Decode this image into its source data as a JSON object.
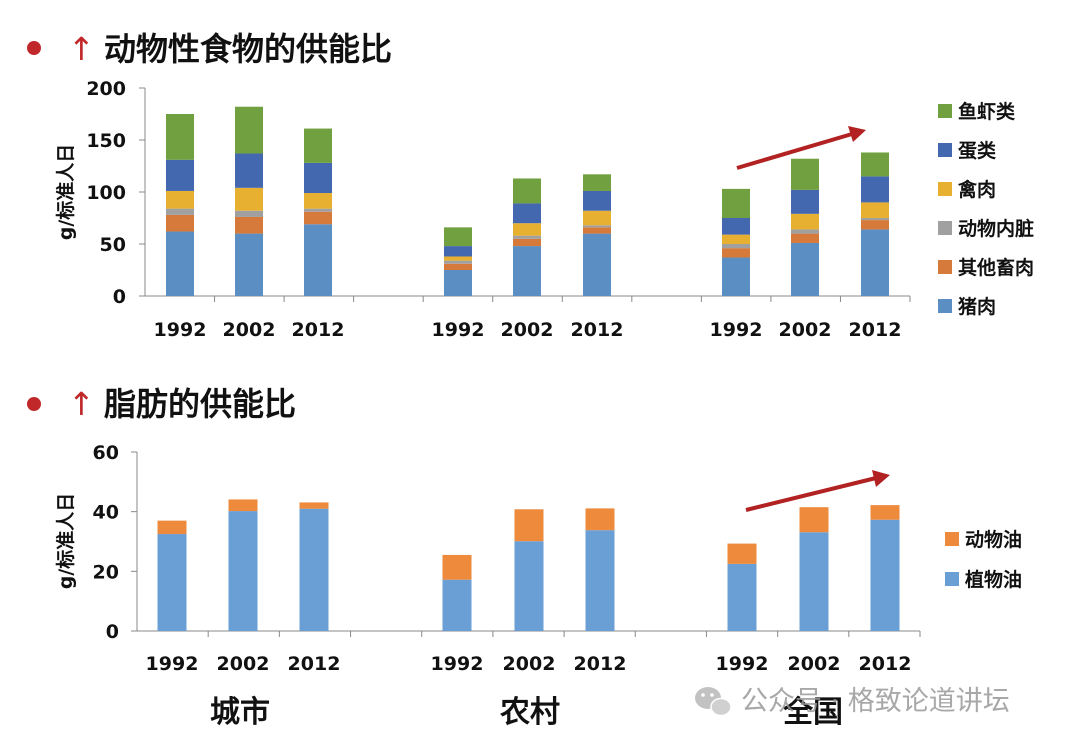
{
  "colors": {
    "fish_shrimp": "#70a040",
    "eggs": "#4468b0",
    "poultry": "#e8b030",
    "offal": "#a0a0a0",
    "other_livestock": "#d57a3a",
    "pork": "#5b8fc3",
    "animal_oil": "#ee8a3c",
    "vegetable_oil": "#6a9fd6",
    "bullet": "#c0282a",
    "arrow": "#c0282a",
    "trend_arrow": "#b22222"
  },
  "chart_data": [
    {
      "type": "bar",
      "stacked": true,
      "title": "动物性食物的供能比",
      "title_arrow": "↑",
      "ylabel": "g/标准人日",
      "ylim": [
        0,
        200
      ],
      "yticks": [
        "0",
        "50",
        "100",
        "150",
        "200"
      ],
      "groups": [
        "城市",
        "农村",
        "全国"
      ],
      "categories": [
        "1992",
        "2002",
        "2012",
        "1992",
        "2002",
        "2012",
        "1992",
        "2002",
        "2012"
      ],
      "series": [
        {
          "name": "猪肉",
          "color_key": "pork",
          "values": [
            62,
            60,
            69,
            25,
            48,
            60,
            37,
            51,
            64
          ]
        },
        {
          "name": "其他畜肉",
          "color_key": "other_livestock",
          "values": [
            16,
            16,
            12,
            6,
            7,
            6,
            9,
            9,
            9
          ]
        },
        {
          "name": "动物内脏",
          "color_key": "offal",
          "values": [
            6,
            6,
            3,
            3,
            3,
            2,
            4,
            4,
            2
          ]
        },
        {
          "name": "禽肉",
          "color_key": "poultry",
          "values": [
            17,
            22,
            15,
            4,
            12,
            14,
            9,
            15,
            15
          ]
        },
        {
          "name": "蛋类",
          "color_key": "eggs",
          "values": [
            30,
            33,
            29,
            10,
            19,
            19,
            16,
            23,
            25
          ]
        },
        {
          "name": "鱼虾类",
          "color_key": "fish_shrimp",
          "values": [
            44,
            45,
            33,
            18,
            24,
            16,
            28,
            30,
            23
          ]
        }
      ],
      "legend_order": [
        "鱼虾类",
        "蛋类",
        "禽肉",
        "动物内脏",
        "其他畜肉",
        "猪肉"
      ],
      "legend_position": "right",
      "grid": false
    },
    {
      "type": "bar",
      "stacked": true,
      "title": "脂肪的供能比",
      "title_arrow": "↑",
      "ylabel": "g/标准人日",
      "ylim": [
        0,
        60
      ],
      "yticks": [
        "0",
        "20",
        "40",
        "60"
      ],
      "groups": [
        "城市",
        "农村",
        "全国"
      ],
      "categories": [
        "1992",
        "2002",
        "2012",
        "1992",
        "2002",
        "2012",
        "1992",
        "2002",
        "2012"
      ],
      "series": [
        {
          "name": "植物油",
          "color_key": "vegetable_oil",
          "values": [
            32.5,
            40.2,
            41.0,
            17.2,
            30.1,
            33.8,
            22.5,
            33.1,
            37.3
          ]
        },
        {
          "name": "动物油",
          "color_key": "animal_oil",
          "values": [
            4.5,
            3.9,
            2.1,
            8.3,
            10.7,
            7.3,
            6.8,
            8.4,
            4.9
          ]
        }
      ],
      "legend_order": [
        "动物油",
        "植物油"
      ],
      "legend_position": "right",
      "grid": false
    }
  ],
  "watermark": "公众号 · 格致论道讲坛"
}
